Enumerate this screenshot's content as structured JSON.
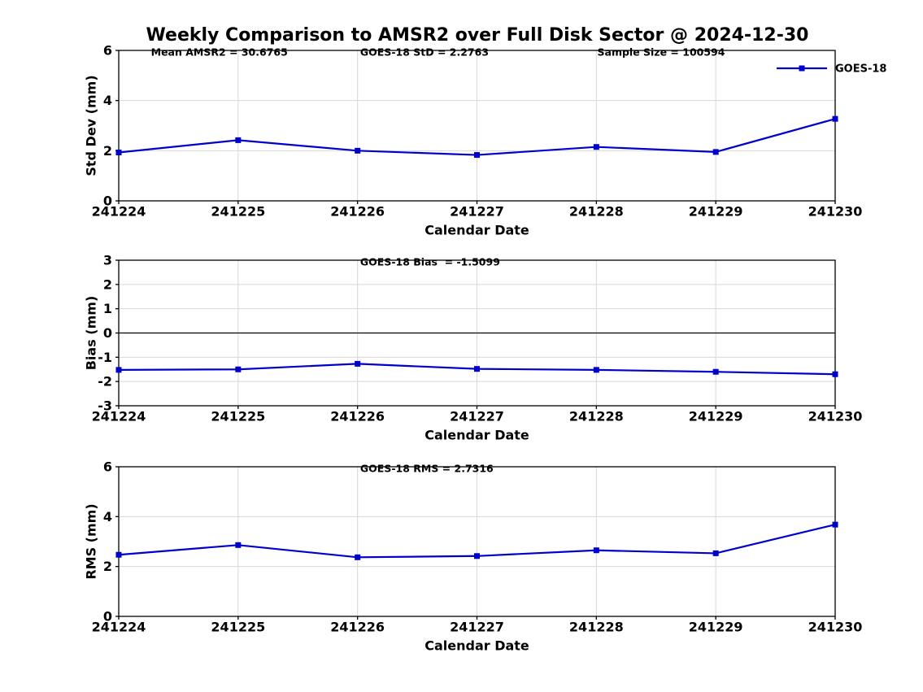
{
  "title": "Weekly Comparison to AMSR2 over Full Disk Sector @ 2024-12-30",
  "legend": {
    "label": "GOES-18"
  },
  "colors": {
    "line": "#0000CD",
    "grid": "#D8D8D8",
    "axis": "#000000",
    "text": "#000000",
    "background": "#FFFFFF"
  },
  "chart_data": [
    {
      "type": "line",
      "id": "std-dev",
      "annotations": [
        "Mean AMSR2 = 30.6765",
        "GOES-18 StD = 2.2763",
        "Sample Size = 100594"
      ],
      "x": [
        241224,
        241225,
        241226,
        241227,
        241228,
        241229,
        241230
      ],
      "xlim": [
        241224,
        241230
      ],
      "series": [
        {
          "name": "GOES-18",
          "values": [
            1.93,
            2.42,
            2.0,
            1.83,
            2.15,
            1.95,
            3.27
          ]
        }
      ],
      "xlabel": "Calendar Date",
      "ylabel": "Std Dev (mm)",
      "ylim": [
        0,
        6
      ],
      "yticks": [
        0,
        2,
        4,
        6
      ],
      "grid": true,
      "legend": true,
      "legend_position": "upper right"
    },
    {
      "type": "line",
      "id": "bias",
      "annotations": [
        "GOES-18 Bias  = -1.5099"
      ],
      "x": [
        241224,
        241225,
        241226,
        241227,
        241228,
        241229,
        241230
      ],
      "xlim": [
        241224,
        241230
      ],
      "series": [
        {
          "name": "GOES-18",
          "values": [
            -1.52,
            -1.5,
            -1.27,
            -1.48,
            -1.52,
            -1.6,
            -1.7
          ]
        }
      ],
      "xlabel": "Calendar Date",
      "ylabel": "Bias (mm)",
      "ylim": [
        -3,
        3
      ],
      "yticks": [
        -3,
        -2,
        -1,
        0,
        1,
        2,
        3
      ],
      "grid": true,
      "zero_line": true
    },
    {
      "type": "line",
      "id": "rms",
      "annotations": [
        "GOES-18 RMS = 2.7316"
      ],
      "x": [
        241224,
        241225,
        241226,
        241227,
        241228,
        241229,
        241230
      ],
      "xlim": [
        241224,
        241230
      ],
      "series": [
        {
          "name": "GOES-18",
          "values": [
            2.47,
            2.86,
            2.37,
            2.42,
            2.65,
            2.53,
            3.68
          ]
        }
      ],
      "xlabel": "Calendar Date",
      "ylabel": "RMS (mm)",
      "ylim": [
        0,
        6
      ],
      "yticks": [
        0,
        2,
        4,
        6
      ],
      "grid": true
    }
  ]
}
